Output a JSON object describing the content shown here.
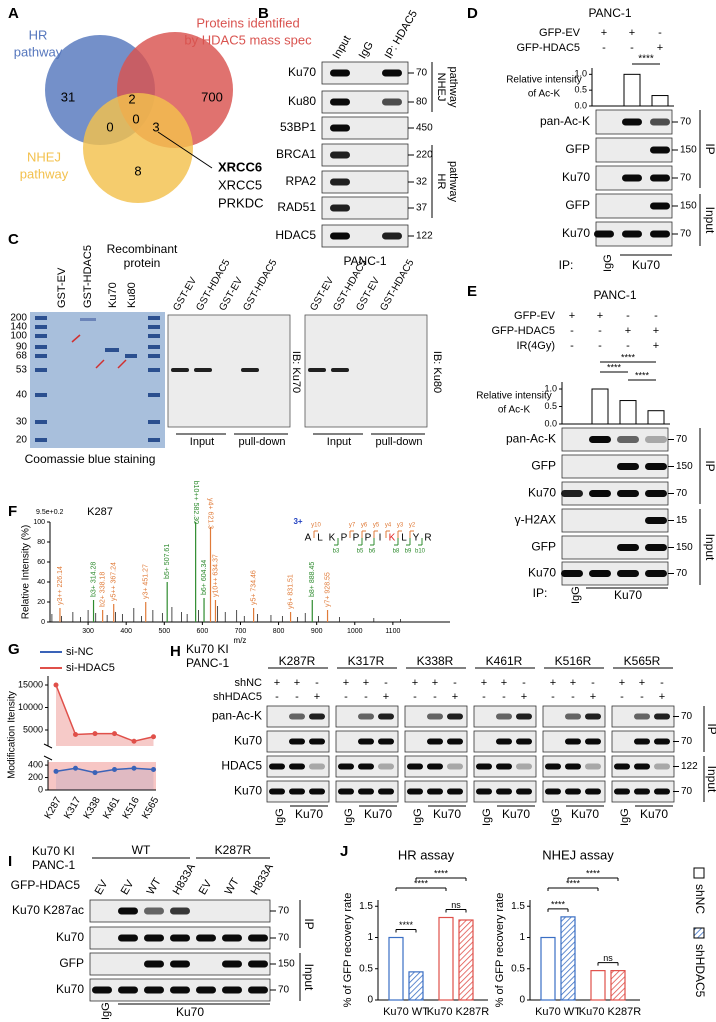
{
  "panel_labels": [
    "A",
    "B",
    "C",
    "D",
    "E",
    "F",
    "G",
    "H",
    "I",
    "J"
  ],
  "A": {
    "sets": [
      {
        "label": [
          "HR",
          "pathway"
        ],
        "color": "#5677bd"
      },
      {
        "label": [
          "Proteins identified",
          "by HDAC5 mass spec"
        ],
        "color": "#d9534f"
      },
      {
        "label": [
          "NHEJ",
          "pathway"
        ],
        "color": "#f3c14d"
      }
    ],
    "counts": [
      31,
      2,
      700,
      0,
      0,
      3,
      8
    ],
    "callout": [
      "XRCC6",
      "XRCC5",
      "PRKDC"
    ]
  },
  "B": {
    "lanes": [
      "Input",
      "IgG",
      "IP: HDAC5"
    ],
    "rows": [
      "Ku70",
      "Ku80",
      "53BP1",
      "BRCA1",
      "RPA2",
      "RAD51",
      "HDAC5"
    ],
    "mw": [
      "70",
      "80",
      "450",
      "220",
      "32",
      "37",
      "122"
    ],
    "groups": [
      [
        "NHEJ",
        "pathway"
      ],
      [
        "HR",
        "pathway"
      ]
    ],
    "cell": "PANC-1"
  },
  "C": {
    "lanes": [
      "GST-EV",
      "GST-HDAC5",
      "Ku70",
      "Ku80"
    ],
    "header": [
      "Recombinant",
      "protein"
    ],
    "markers": [
      "200",
      "140",
      "100",
      "90",
      "68",
      "53",
      "40",
      "30",
      "20"
    ],
    "caption": "Coomassie blue staining",
    "blot_lanes": [
      "GST-EV",
      "GST-HDAC5",
      "GST-EV",
      "GST-HDAC5"
    ],
    "groups": [
      "Input",
      "pull-down"
    ],
    "ib": [
      "IB: Ku70",
      "IB: Ku80"
    ]
  },
  "D": {
    "cell": "PANC-1",
    "conditions": [
      {
        "name": "GFP-EV",
        "signs": [
          "+",
          "+",
          "-"
        ]
      },
      {
        "name": "GFP-HDAC5",
        "signs": [
          "-",
          "-",
          "+"
        ]
      }
    ],
    "chart": {
      "type": "bar",
      "ylabel": [
        "Relative intensity",
        "of Ac-K"
      ],
      "ylim": [
        0,
        1.2
      ],
      "yticks": [
        {
          "value": 0,
          "label": "0.0"
        },
        0.5,
        {
          "value": 1,
          "label": "1.0"
        }
      ],
      "values": [
        1.0,
        0.33
      ],
      "significance": [
        "****"
      ]
    },
    "blots": [
      "pan-Ac-K",
      "GFP",
      "Ku70",
      "GFP",
      "Ku70"
    ],
    "mw": [
      "70",
      "150",
      "70",
      "150",
      "70"
    ],
    "groups": [
      "IP",
      "Input"
    ],
    "ip": "IP:",
    "lanes": [
      "IgG",
      "Ku70"
    ]
  },
  "E": {
    "cell": "PANC-1",
    "conditions": [
      {
        "name": "GFP-EV",
        "signs": [
          "+",
          "+",
          "-",
          "-"
        ]
      },
      {
        "name": "GFP-HDAC5",
        "signs": [
          "-",
          "-",
          "+",
          "+"
        ]
      },
      {
        "name": "IR(4Gy)",
        "signs": [
          "-",
          "-",
          "-",
          "+"
        ]
      }
    ],
    "chart": {
      "type": "bar",
      "ylabel": [
        "Relative intensity",
        "of Ac-K"
      ],
      "ylim": [
        0,
        1.2
      ],
      "yticks": [
        {
          "value": 0,
          "label": "0.0"
        },
        0.5,
        {
          "value": 1,
          "label": "1.0"
        }
      ],
      "values": [
        1.0,
        0.67,
        0.38
      ],
      "significance": [
        "****",
        "****",
        "****"
      ]
    },
    "blots": [
      "pan-Ac-K",
      "GFP",
      "Ku70",
      "γ-H2AX",
      "GFP",
      "Ku70"
    ],
    "mw": [
      "70",
      "150",
      "70",
      "15",
      "150",
      "70"
    ],
    "groups": [
      "IP",
      "Input"
    ],
    "ip": "IP:",
    "lanes": [
      "IgG",
      "Ku70"
    ]
  },
  "F": {
    "type": "spectrum",
    "title": "K287",
    "scale": "9.5e+0.2",
    "ylabel": "Relative Intensity (%)",
    "xlabel": "m/z",
    "xlim": [
      200,
      1250
    ],
    "xticks": [
      300,
      400,
      500,
      600,
      700,
      800,
      900,
      1000,
      1100
    ],
    "ylim": [
      0,
      100
    ],
    "yticks": [
      0,
      20,
      40,
      60,
      80,
      100
    ],
    "peaks": {
      "mz": [
        205,
        230,
        260,
        280,
        300,
        320,
        350,
        372,
        390,
        420,
        440,
        470,
        495,
        520,
        545,
        560,
        590,
        640,
        660,
        690,
        710,
        745,
        780,
        810,
        850,
        870,
        905,
        960,
        1050,
        1120
      ],
      "intensity": [
        8,
        6,
        10,
        5,
        12,
        9,
        7,
        10,
        8,
        14,
        6,
        12,
        9,
        15,
        10,
        8,
        12,
        16,
        10,
        12,
        6,
        8,
        7,
        6,
        5,
        9,
        6,
        5,
        4,
        3
      ]
    },
    "labeled_peaks": [
      {
        "label": "y3++ 226.14",
        "mz": 226.14,
        "intensity": 14,
        "color": "#e07b39"
      },
      {
        "label": "b3+ 314.28",
        "mz": 314.28,
        "intensity": 22,
        "color": "#2e8b2e"
      },
      {
        "label": "b2+ 338.18",
        "mz": 338.18,
        "intensity": 12,
        "color": "#e07b39"
      },
      {
        "label": "y5++ 367.24",
        "mz": 367.24,
        "intensity": 18,
        "color": "#e07b39"
      },
      {
        "label": "y3+ 451.27",
        "mz": 451.27,
        "intensity": 20,
        "color": "#e07b39"
      },
      {
        "label": "b5+ 507.61",
        "mz": 507.61,
        "intensity": 40,
        "color": "#2e8b2e"
      },
      {
        "label": "b10++ 582.30",
        "mz": 582.3,
        "intensity": 100,
        "color": "#2e8b2e"
      },
      {
        "label": "b6+ 604.34",
        "mz": 604.34,
        "intensity": 24,
        "color": "#2e8b2e"
      },
      {
        "label": "y4+ 621.3",
        "mz": 621.3,
        "intensity": 95,
        "color": "#e07b39"
      },
      {
        "label": "y10++ 634.37",
        "mz": 634.37,
        "intensity": 22,
        "color": "#e07b39"
      },
      {
        "label": "y5+ 734.46",
        "mz": 734.46,
        "intensity": 14,
        "color": "#e07b39"
      },
      {
        "label": "y6+ 831.51",
        "mz": 831.51,
        "intensity": 10,
        "color": "#e07b39"
      },
      {
        "label": "b8+ 888.45",
        "mz": 888.45,
        "intensity": 22,
        "color": "#2e8b2e"
      },
      {
        "label": "y7+ 928.55",
        "mz": 928.55,
        "intensity": 12,
        "color": "#e07b39"
      }
    ],
    "charge": "3+",
    "sequence": [
      {
        "residue": "A",
        "color": "#000000"
      },
      {
        "residue": "L",
        "color": "#000000"
      },
      {
        "residue": "K",
        "color": "#000000"
      },
      {
        "residue": "P",
        "color": "#000000"
      },
      {
        "residue": "P",
        "color": "#000000"
      },
      {
        "residue": "P",
        "color": "#000000"
      },
      {
        "residue": "I",
        "color": "#000000"
      },
      {
        "residue": "K",
        "color": "#e02020"
      },
      {
        "residue": "L",
        "color": "#000000"
      },
      {
        "residue": "Y",
        "color": "#000000"
      },
      {
        "residue": "R",
        "color": "#000000"
      }
    ],
    "y_ions": [
      "y10",
      "y7",
      "y6",
      "y5",
      "y4",
      "y3",
      "y2"
    ],
    "b_ions": [
      "b3",
      "b5",
      "b6",
      "b8",
      "b9",
      "b10"
    ]
  },
  "G": {
    "type": "line",
    "ylabel": "Modification Itensity",
    "categories": [
      "K287",
      "K317",
      "K338",
      "K461",
      "K516",
      "K565"
    ],
    "series": [
      {
        "name": "si-NC",
        "color": "#3a63b8",
        "values": [
          300,
          350,
          280,
          330,
          350,
          330
        ]
      },
      {
        "name": "si-HDAC5",
        "color": "#e0504a",
        "values": [
          15000,
          4000,
          4200,
          4200,
          2500,
          3500
        ]
      }
    ],
    "ylim": [
      0,
      450
    ],
    "yticks": [
      0,
      200,
      400
    ],
    "ylim_upper": [
      2000,
      16000
    ],
    "yticks_upper": [
      5000,
      10000,
      15000
    ]
  },
  "H": {
    "header": [
      "Ku70 KI",
      "PANC-1"
    ],
    "mutants": [
      "K287R",
      "K317R",
      "K338R",
      "K461R",
      "K516R",
      "K565R"
    ],
    "conditions": [
      {
        "name": "shNC",
        "signs": [
          "+",
          "+",
          "-"
        ]
      },
      {
        "name": "shHDAC5",
        "signs": [
          "-",
          "-",
          "+"
        ]
      }
    ],
    "blots": [
      "pan-Ac-K",
      "Ku70",
      "HDAC5",
      "Ku70"
    ],
    "mw": [
      "70",
      "70",
      "122",
      "70"
    ],
    "groups": [
      "IP",
      "Input"
    ],
    "lanes": [
      "IgG",
      "Ku70"
    ]
  },
  "I": {
    "header": [
      "Ku70 KI",
      "PANC-1"
    ],
    "genotypes": [
      "WT",
      "K287R"
    ],
    "condition": "GFP-HDAC5",
    "condition_lanes": [
      "EV",
      "EV",
      "WT",
      "H833A",
      "EV",
      "WT",
      "H833A"
    ],
    "blots": [
      "Ku70 K287ac",
      "Ku70",
      "GFP",
      "Ku70"
    ],
    "mw": [
      "70",
      "70",
      "150",
      "70"
    ],
    "groups": [
      "IP",
      "Input"
    ],
    "lanes": [
      "IgG",
      "Ku70"
    ]
  },
  "J": {
    "group_colors": [
      "#3a6fc4",
      "#e0504a"
    ],
    "charts": [
      {
        "type": "bar",
        "title": "HR assay",
        "ylabel": "% of GFP recovery rate",
        "categories": [
          "Ku70 WT",
          "Ku70 K287R"
        ],
        "ylim": [
          0,
          1.6
        ],
        "yticks": [
          0,
          0.5,
          1,
          1.5
        ],
        "series": [
          {
            "name": "shNC",
            "values": [
              1.0,
              1.32
            ]
          },
          {
            "name": "shHDAC5",
            "values": [
              0.45,
              1.28
            ]
          }
        ],
        "significance": [
          "****",
          "****",
          "****",
          "ns"
        ]
      },
      {
        "type": "bar",
        "title": "NHEJ assay",
        "ylabel": "% of GFP recovery rate",
        "categories": [
          "Ku70 WT",
          "Ku70 K287R"
        ],
        "ylim": [
          0,
          1.6
        ],
        "yticks": [
          0,
          0.5,
          1,
          1.5
        ],
        "series": [
          {
            "name": "shNC",
            "values": [
              1.0,
              0.47
            ]
          },
          {
            "name": "shHDAC5",
            "values": [
              1.33,
              0.47
            ]
          }
        ],
        "significance": [
          "****",
          "****",
          "****",
          "ns"
        ]
      }
    ]
  }
}
